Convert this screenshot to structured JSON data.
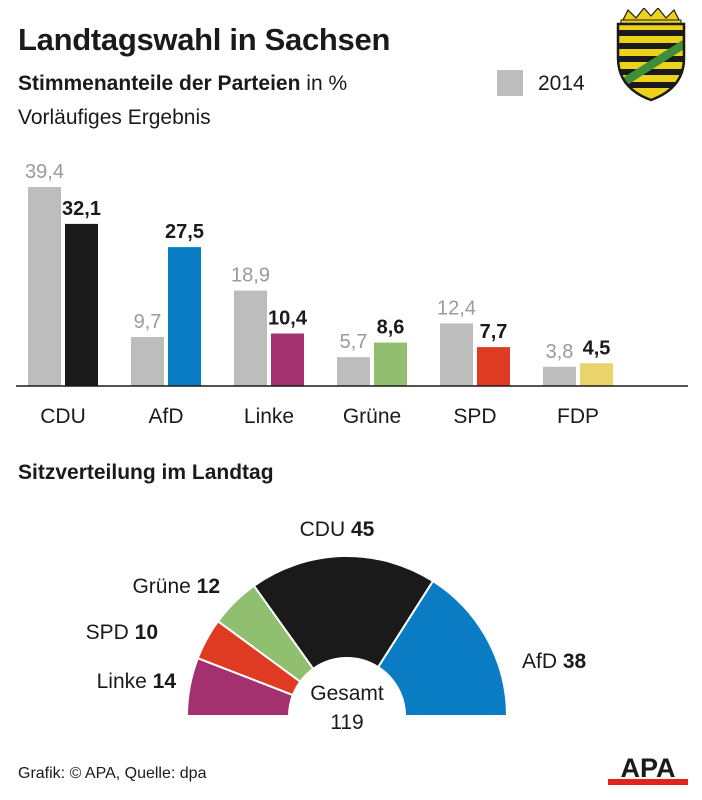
{
  "header": {
    "title": "Landtagswahl in Sachsen",
    "subtitle_bold": "Stimmenanteile der Parteien",
    "subtitle_rest": " in %",
    "note": "Vorläufiges Ergebnis"
  },
  "legend": {
    "prev_label": "2014",
    "prev_color": "#bdbdbd"
  },
  "seat_section": {
    "heading": "Sitzverteilung im Landtag"
  },
  "footer": {
    "source": "Grafik: © APA, Quelle: dpa",
    "logo_text": "APA"
  },
  "colors": {
    "axis": "#1a1a1a",
    "prev_value_text": "#9a9a9a",
    "logo_red": "#e2231a"
  },
  "chart_data": [
    {
      "type": "bar",
      "categories": [
        "CDU",
        "AfD",
        "Linke",
        "Grüne",
        "SPD",
        "FDP"
      ],
      "ylim": [
        0,
        40
      ],
      "grid": false,
      "legend_position": "top-right",
      "series": [
        {
          "name": "2014",
          "values": [
            39.4,
            9.7,
            18.9,
            5.7,
            12.4,
            3.8
          ],
          "labels": [
            "39,4",
            "9,7",
            "18,9",
            "5,7",
            "12,4",
            "3,8"
          ],
          "color": "#bdbdbd"
        },
        {
          "values": [
            32.1,
            27.5,
            10.4,
            8.6,
            7.7,
            4.5
          ],
          "labels": [
            "32,1",
            "27,5",
            "10,4",
            "8,6",
            "7,7",
            "4,5"
          ],
          "colors": [
            "#1a1a1a",
            "#0a7cc4",
            "#a3306f",
            "#8fbf6f",
            "#df3a22",
            "#ead36a"
          ]
        }
      ]
    },
    {
      "type": "pie",
      "style": "half-donut",
      "total_label": "Gesamt",
      "total": 119,
      "slices": [
        {
          "party": "Linke",
          "seats": 14,
          "color": "#a3306f"
        },
        {
          "party": "SPD",
          "seats": 10,
          "color": "#df3a22"
        },
        {
          "party": "Grüne",
          "seats": 12,
          "color": "#8fbf6f"
        },
        {
          "party": "CDU",
          "seats": 45,
          "color": "#1a1a1a"
        },
        {
          "party": "AfD",
          "seats": 38,
          "color": "#0a7cc4"
        }
      ]
    }
  ]
}
